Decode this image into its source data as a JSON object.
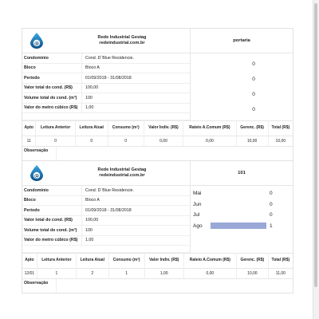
{
  "receipts": [
    {
      "company_line1": "Rede Industrial Gestag",
      "company_line2": "redeindustrial.com.br",
      "unit": "portaria",
      "fields": [
        {
          "label": "Condominio",
          "value": "Cond. D´Blue Residencie."
        },
        {
          "label": "Bloco",
          "value": "Bloco A"
        },
        {
          "label": "Periodo",
          "value": "01/09/2018 - 31/08/2018"
        },
        {
          "label": "Valor total do cond. (R$)",
          "value": "100,00"
        },
        {
          "label": "Volume total do cond. (m³)",
          "value": "100"
        },
        {
          "label": "Valor do metro cúbico (R$)",
          "value": "1,00"
        }
      ],
      "side_values": [
        "0",
        "0",
        "0",
        "0"
      ],
      "table": {
        "headers": [
          "Apto",
          "Leitura Anterior",
          "Leitura Atual",
          "Consumo (m³)",
          "Valor Indiv. (R$)",
          "Rateio A.Comum (R$)",
          "Gerenc. (R$)",
          "Total (R$)"
        ],
        "row": [
          "11",
          "0",
          "0",
          "0",
          "0,00",
          "0,00",
          "10,00",
          "10,00"
        ]
      },
      "obs_label": "Observação"
    },
    {
      "company_line1": "Rede Industrial Gestag",
      "company_line2": "redeindustrial.com.br",
      "unit": "101",
      "fields": [
        {
          "label": "Condominio",
          "value": "Cond. D´Blue Residencie."
        },
        {
          "label": "Bloco",
          "value": "Bloco A"
        },
        {
          "label": "Periodo",
          "value": "01/09/2018 - 31/08/2018"
        },
        {
          "label": "Valor total do cond. (R$)",
          "value": "100,00"
        },
        {
          "label": "Volume total do cond. (m³)",
          "value": "100"
        },
        {
          "label": "Valor do metro cúbico (R$)",
          "value": "1,00"
        }
      ],
      "history": [
        {
          "month": "Mai",
          "value": "0",
          "fill": 0
        },
        {
          "month": "Jun",
          "value": "0",
          "fill": 0
        },
        {
          "month": "Jul",
          "value": "0",
          "fill": 0
        },
        {
          "month": "Ago",
          "value": "1",
          "fill": 1
        }
      ],
      "table": {
        "headers": [
          "Apto",
          "Leitura Anterior",
          "Leitura Atual",
          "Consumo (m³)",
          "Valor Indiv. (R$)",
          "Rateio A.Comum (R$)",
          "Gerenc. (R$)",
          "Total (R$)"
        ],
        "row": [
          "12/01",
          "1",
          "2",
          "1",
          "1,00",
          "0,00",
          "10,00",
          "11,00"
        ]
      },
      "obs_label": "Observação"
    }
  ],
  "colors": {
    "bar": "#99a8d6",
    "logo_blue": "#1e88c8",
    "logo_dark": "#0d4f86"
  }
}
